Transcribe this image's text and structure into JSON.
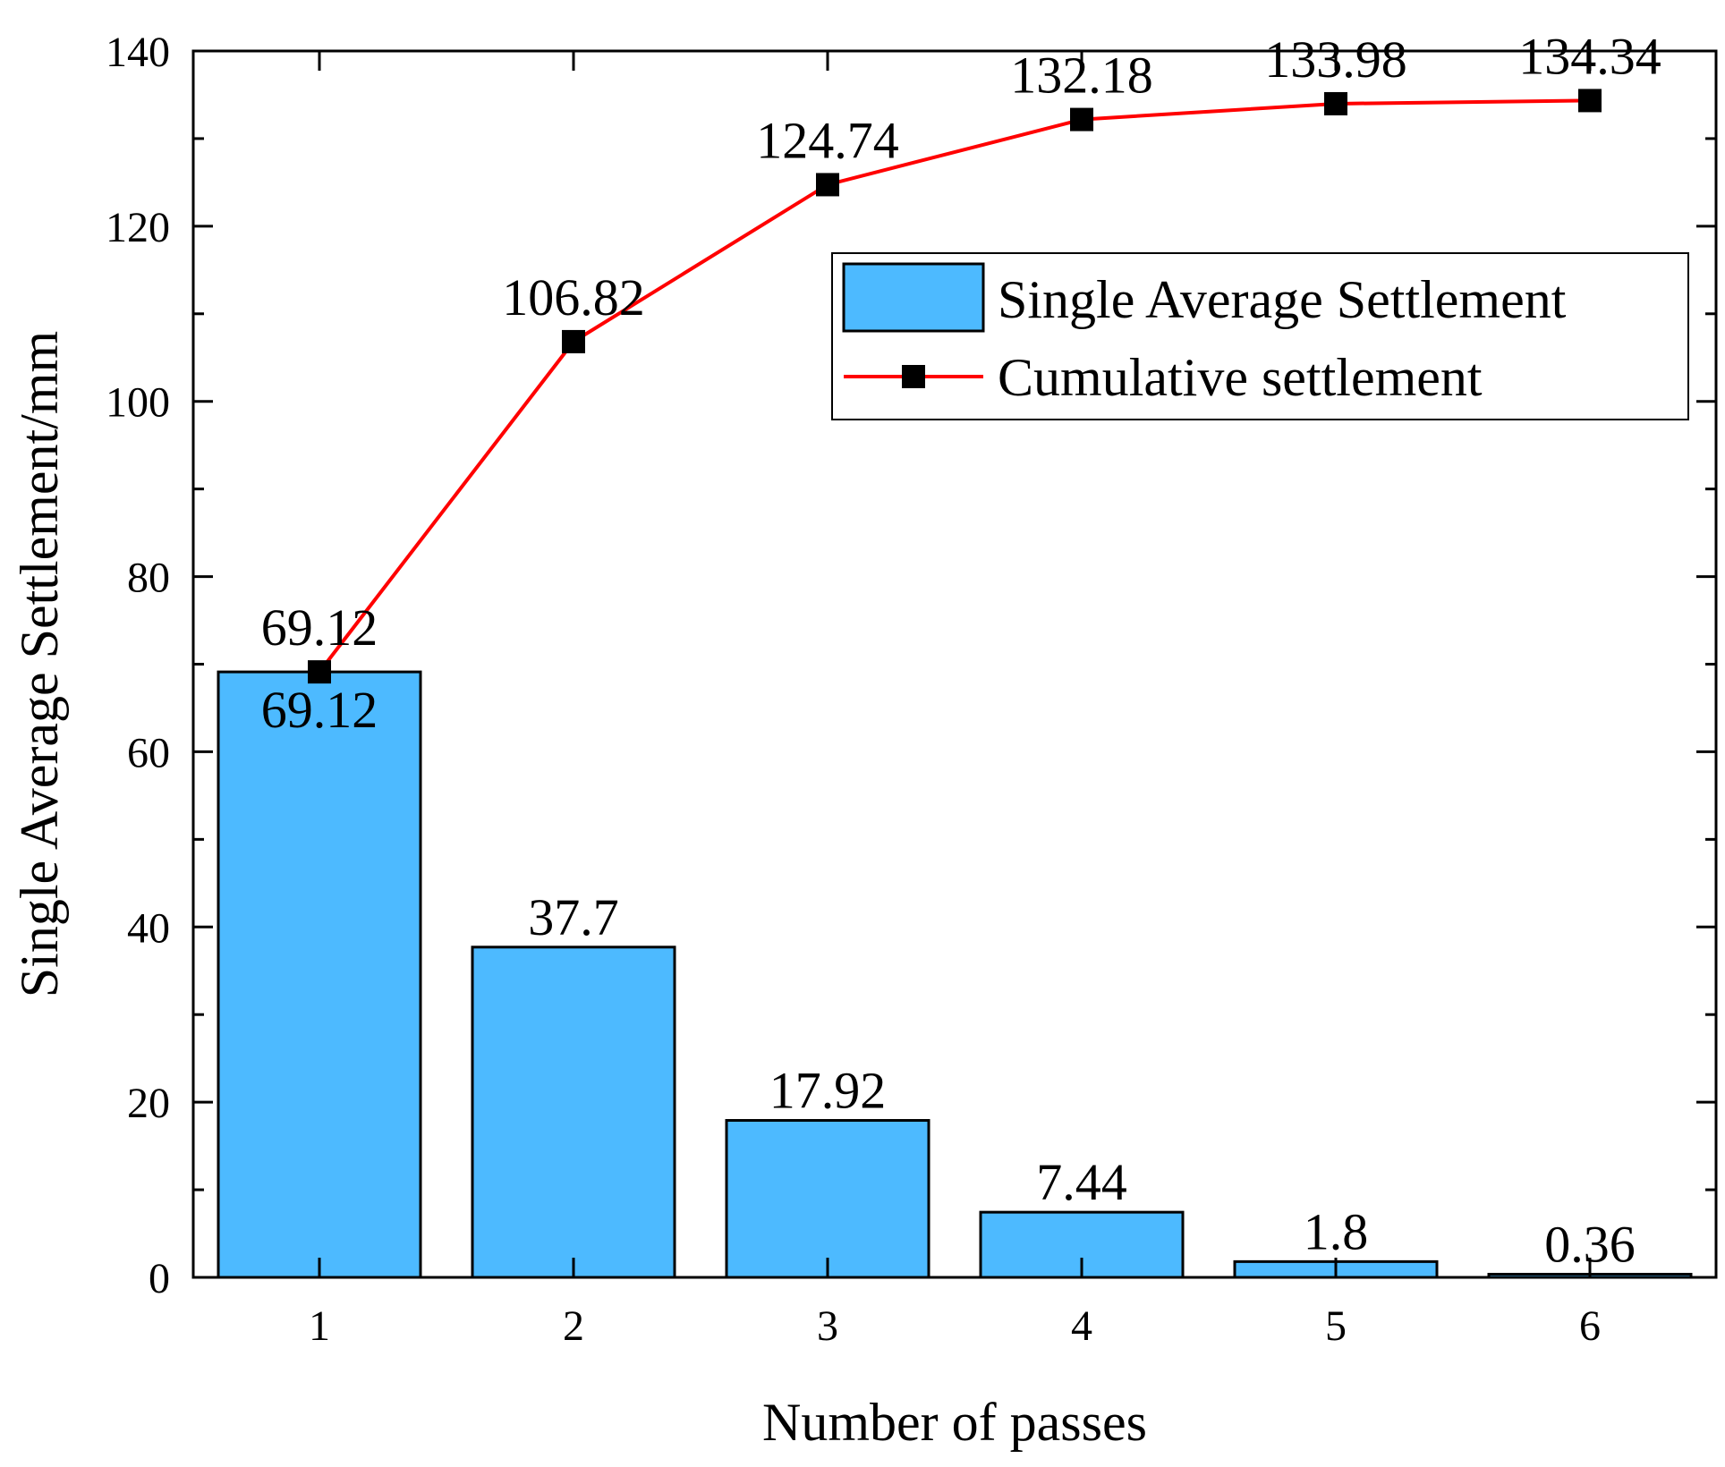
{
  "chart_data": {
    "type": "bar+line",
    "xlabel": "Number of passes",
    "ylabel": "Single Average Settlement/mm",
    "ylim": [
      0,
      140
    ],
    "y_major_ticks": [
      0,
      20,
      40,
      60,
      80,
      100,
      120,
      140
    ],
    "y_minor_step": 10,
    "categories": [
      "1",
      "2",
      "3",
      "4",
      "5",
      "6"
    ],
    "legend_position": "top-right",
    "series": [
      {
        "name": "Single Average Settlement",
        "type": "bar",
        "color": "#4dbaff",
        "values": [
          69.12,
          37.7,
          17.92,
          7.44,
          1.8,
          0.36
        ],
        "labels": [
          "69.12",
          "37.7",
          "17.92",
          "7.44",
          "1.8",
          "0.36"
        ]
      },
      {
        "name": "Cumulative settlement",
        "type": "line",
        "color": "#ff0000",
        "marker": "square",
        "marker_color": "#000000",
        "values": [
          69.12,
          106.82,
          124.74,
          132.18,
          133.98,
          134.34
        ],
        "labels": [
          "69.12",
          "106.82",
          "124.74",
          "132.18",
          "133.98",
          "134.34"
        ]
      }
    ]
  }
}
